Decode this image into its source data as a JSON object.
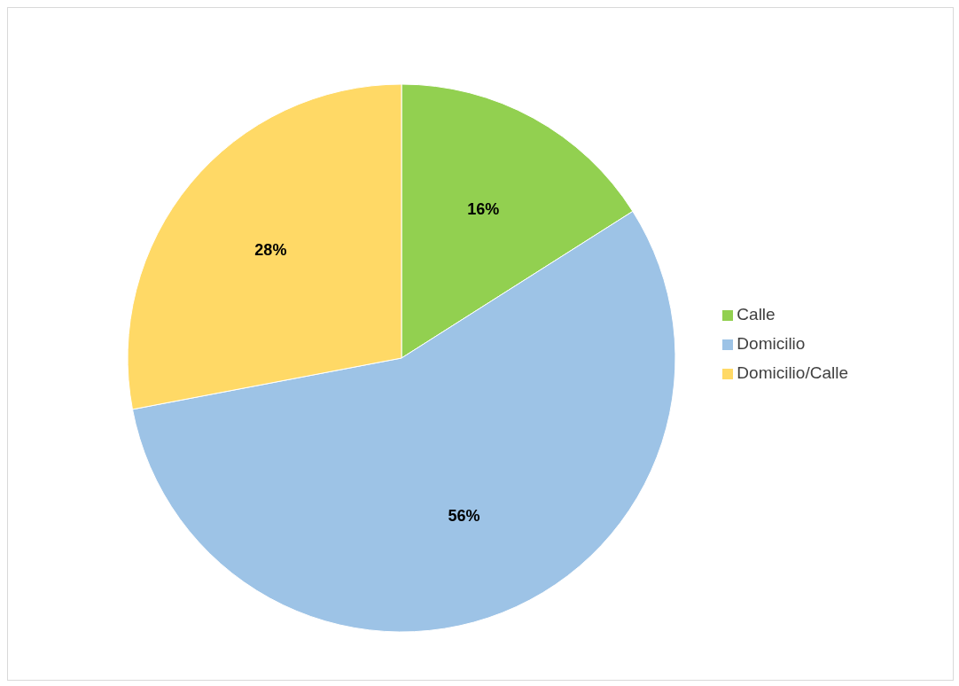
{
  "chart_data": {
    "type": "pie",
    "categories": [
      "Calle",
      "Domicilio",
      "Domicilio/Calle"
    ],
    "values": [
      16,
      56,
      28
    ],
    "colors": [
      "#92d050",
      "#9dc3e6",
      "#ffd966"
    ],
    "value_labels": [
      "16%",
      "56%",
      "28%"
    ],
    "legend": "right"
  }
}
